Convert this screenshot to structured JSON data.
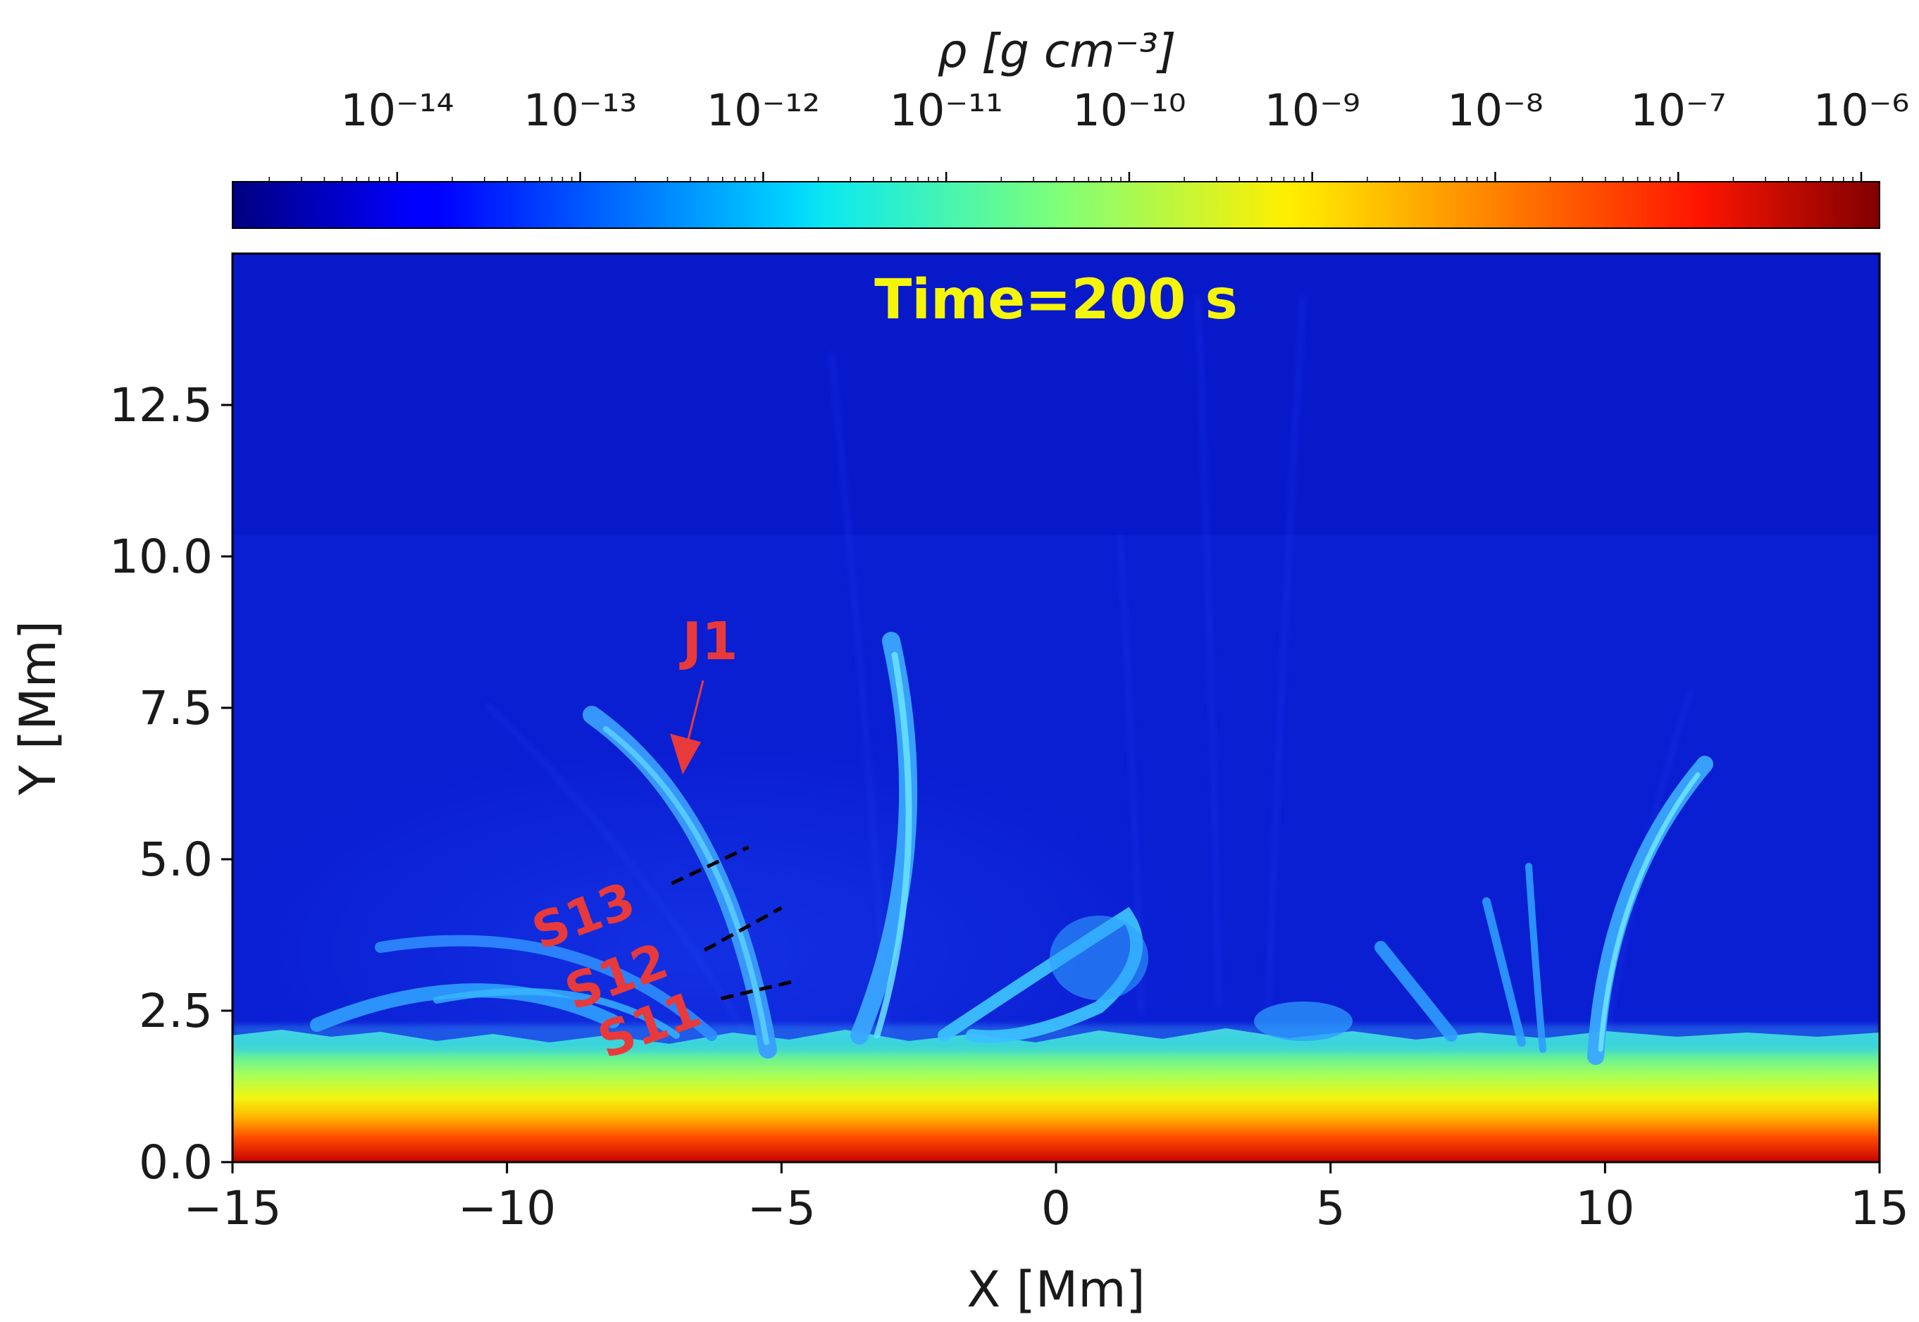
{
  "chart_data": {
    "type": "heatmap",
    "title": "Time=200 s",
    "xlabel": "X [Mm]",
    "ylabel": "Y [Mm]",
    "xlim": [
      -15,
      15
    ],
    "ylim": [
      0,
      15
    ],
    "x_ticks": [
      -15,
      -10,
      -5,
      0,
      5,
      10,
      15
    ],
    "x_tick_labels": [
      "−15",
      "−10",
      "−5",
      "0",
      "5",
      "10",
      "15"
    ],
    "y_ticks": [
      0,
      2.5,
      5,
      7.5,
      10,
      12.5
    ],
    "y_tick_labels": [
      "0.0",
      "2.5",
      "5.0",
      "7.5",
      "10.0",
      "12.5"
    ],
    "colorbar": {
      "label": "ρ  [g  cm⁻³]",
      "scale": "log",
      "range": [
        -14.9,
        -5.9
      ],
      "tick_exponents": [
        -14,
        -13,
        -12,
        -11,
        -10,
        -9,
        -8,
        -7,
        -6
      ],
      "tick_labels": [
        "10⁻¹⁴",
        "10⁻¹³",
        "10⁻¹²",
        "10⁻¹¹",
        "10⁻¹⁰",
        "10⁻⁹",
        "10⁻⁸",
        "10⁻⁷",
        "10⁻⁶"
      ],
      "colormap": "jet"
    },
    "annotations": [
      {
        "text": "J1",
        "arrow_tip": [
          -6.8,
          6.4
        ],
        "label_at": [
          -6.3,
          8.3
        ]
      },
      {
        "text": "S13",
        "slit": [
          [
            -7.0,
            4.6
          ],
          [
            -5.6,
            5.2
          ]
        ],
        "label_at": [
          -8.5,
          3.8
        ]
      },
      {
        "text": "S12",
        "slit": [
          [
            -6.4,
            3.5
          ],
          [
            -5.0,
            4.2
          ]
        ],
        "label_at": [
          -7.9,
          2.8
        ]
      },
      {
        "text": "S11",
        "slit": [
          [
            -6.1,
            2.7
          ],
          [
            -4.7,
            3.0
          ]
        ],
        "label_at": [
          -7.3,
          2.0
        ]
      }
    ],
    "colors": {
      "title": "#f5f50a",
      "annotation": "#e83a3a",
      "slit": "#000000",
      "background_corona": "#0a1ed2",
      "jet_structure": "#2f8cff"
    }
  }
}
